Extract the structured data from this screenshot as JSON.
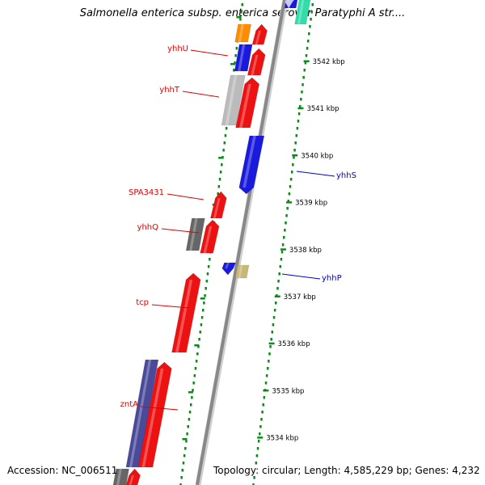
{
  "title": "Salmonella enterica subsp. enterica serovar Paratyphi A str....",
  "footer": {
    "accession": "Accession: NC_006511",
    "summary": "Topology: circular; Length: 4,585,229 bp; Genes: 4,232"
  },
  "ticks": [
    {
      "label": "3542 kbp",
      "kbp": 3542
    },
    {
      "label": "3541 kbp",
      "kbp": 3541
    },
    {
      "label": "3540 kbp",
      "kbp": 3540
    },
    {
      "label": "3539 kbp",
      "kbp": 3539
    },
    {
      "label": "3538 kbp",
      "kbp": 3538
    },
    {
      "label": "3537 kbp",
      "kbp": 3537
    },
    {
      "label": "3536 kbp",
      "kbp": 3536
    },
    {
      "label": "3535 kbp",
      "kbp": 3535
    },
    {
      "label": "3534 kbp",
      "kbp": 3534
    }
  ],
  "gene_labels": [
    {
      "name": "yhhU",
      "side": "left",
      "color": "#e00000"
    },
    {
      "name": "yhhT",
      "side": "left",
      "color": "#e00000"
    },
    {
      "name": "yhhS",
      "side": "right",
      "color": "#0000cc"
    },
    {
      "name": "SPA3431",
      "side": "left",
      "color": "#e00000"
    },
    {
      "name": "yhhQ",
      "side": "left",
      "color": "#e00000"
    },
    {
      "name": "yhhP",
      "side": "right",
      "color": "#0000cc"
    },
    {
      "name": "tcp",
      "side": "left",
      "color": "#e00000"
    },
    {
      "name": "zntA",
      "side": "left",
      "color": "#e00000"
    }
  ],
  "colors": {
    "forward_cds": "#ee1111",
    "reverse_cds": "#1a1add",
    "backbone": "#888888",
    "ticks": "#0c8a1c",
    "orange_feature": "#ff8c00",
    "grey_feature": "#bbbbbb",
    "darkgrey_feature": "#666666",
    "navy_feature": "#4a4a9a",
    "khaki_feature": "#c8b878",
    "teal_feature": "#33ddaa",
    "lavender_feature": "#c8c8ff"
  }
}
